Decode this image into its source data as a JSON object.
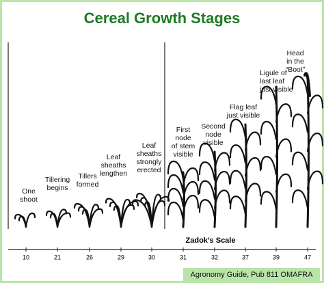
{
  "title": "Cereal Growth Stages",
  "stages": [
    {
      "label": [
        "One",
        "shoot"
      ],
      "zadok": "10"
    },
    {
      "label": [
        "Tillering",
        "begins"
      ],
      "zadok": "21"
    },
    {
      "label": [
        "Tillers",
        "formed"
      ],
      "zadok": "26"
    },
    {
      "label": [
        "Leaf",
        "sheaths",
        "lengthen"
      ],
      "zadok": "29"
    },
    {
      "label": [
        "Leaf",
        "sheaths",
        "strongly",
        "erected"
      ],
      "zadok": "30"
    },
    {
      "label": [
        "First",
        "node",
        "of stem",
        "visible"
      ],
      "zadok": "31"
    },
    {
      "label": [
        "Second",
        "node",
        "visible"
      ],
      "zadok": "32"
    },
    {
      "label": [
        "Flag leaf",
        "just visible"
      ],
      "zadok": "37"
    },
    {
      "label": [
        "Ligule of",
        "last leaf",
        "just visible"
      ],
      "zadok": "39"
    },
    {
      "label": [
        "Head",
        "in the",
        "“Boot”"
      ],
      "zadok": "47"
    }
  ],
  "scale_title": "Zadok’s Scale",
  "source": "Agronomy Guide, Pub 811 OMAFRA"
}
